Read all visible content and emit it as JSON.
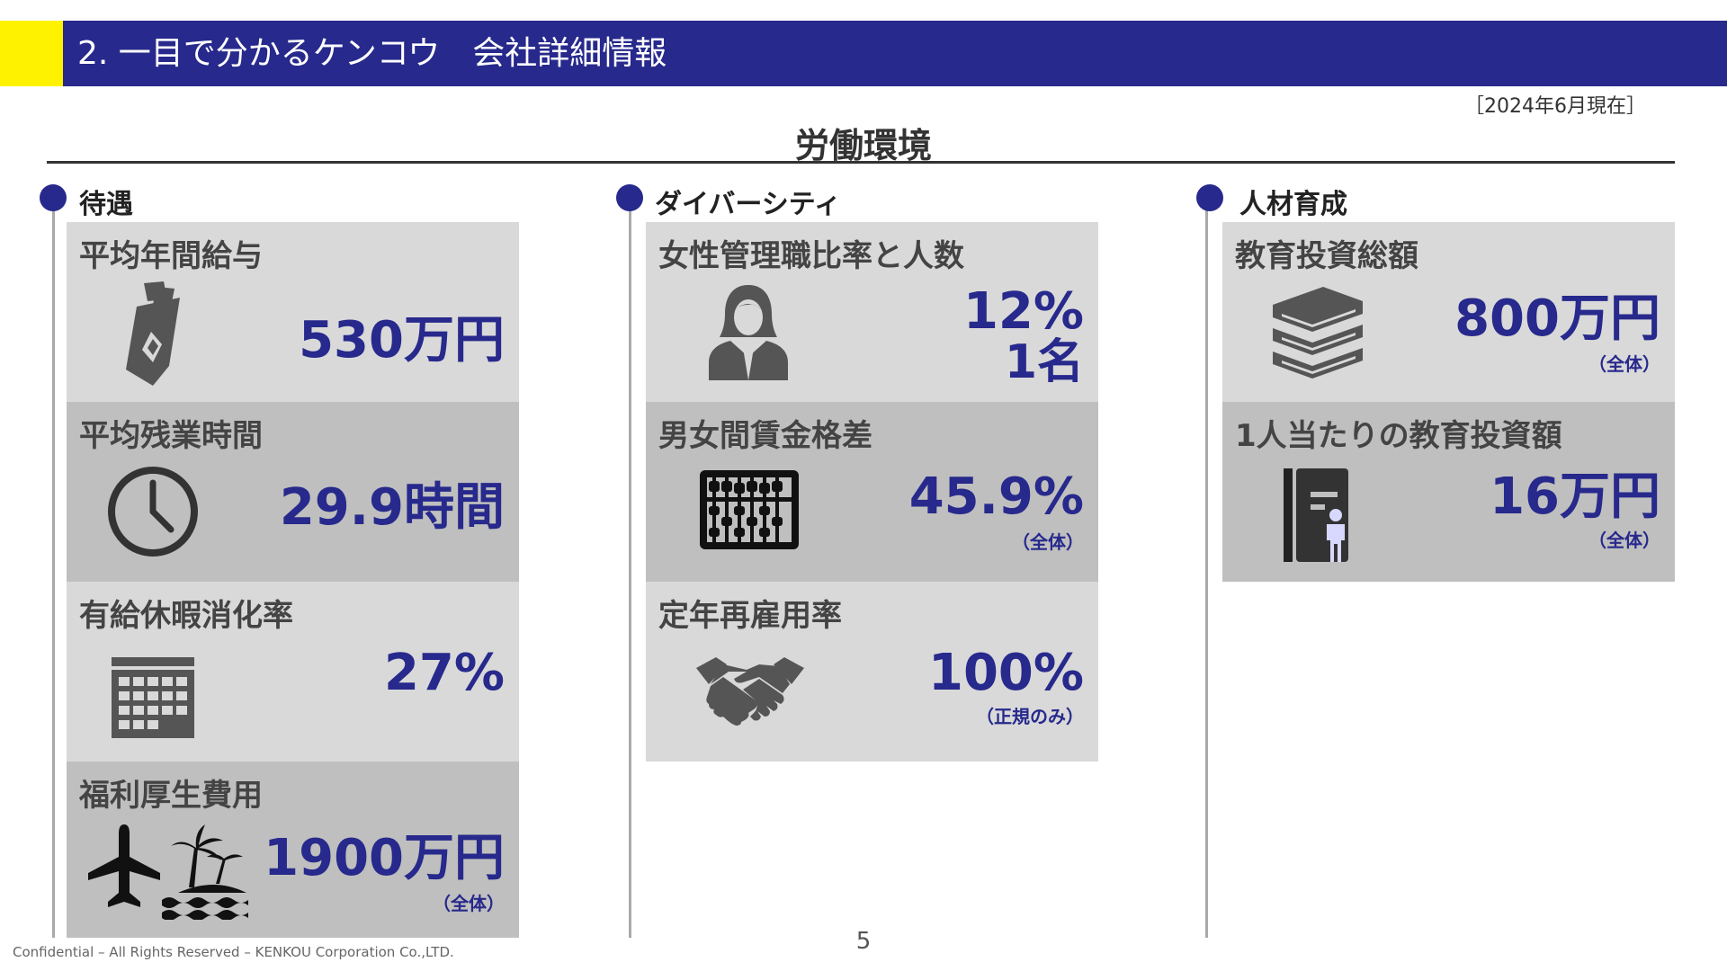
{
  "header": {
    "title": "2. 一目で分かるケンコウ　会社詳細情報",
    "accent_color": "#fff200",
    "band_color": "#27298c"
  },
  "as_of": "［2024年6月現在］",
  "section_title": "労働環境",
  "columns": [
    {
      "heading": "待遇",
      "cards": [
        {
          "label": "平均年間給与",
          "value": "530万円",
          "icon": "salary-envelope-icon"
        },
        {
          "label": "平均残業時間",
          "value": "29.9時間",
          "icon": "clock-icon"
        },
        {
          "label": "有給休暇消化率",
          "value": "27%",
          "icon": "calendar-icon"
        },
        {
          "label": "福利厚生費用",
          "value": "1900万円",
          "note": "（全体）",
          "icon": "airplane-island-icon"
        }
      ]
    },
    {
      "heading": "ダイバーシティ",
      "cards": [
        {
          "label": "女性管理職比率と人数",
          "value": "12%",
          "value2": "1名",
          "icon": "woman-icon"
        },
        {
          "label": "男女間賃金格差",
          "value": "45.9%",
          "note": "（全体）",
          "icon": "abacus-icon"
        },
        {
          "label": "定年再雇用率",
          "value": "100%",
          "note": "（正規のみ）",
          "icon": "handshake-icon"
        }
      ]
    },
    {
      "heading": "人材育成",
      "cards": [
        {
          "label": "教育投資総額",
          "value": "800万円",
          "note": "（全体）",
          "icon": "books-icon"
        },
        {
          "label": "1人当たりの教育投資額",
          "value": "16万円",
          "note": "（全体）",
          "icon": "person-book-icon"
        }
      ]
    }
  ],
  "footer": {
    "confidential": "Confidential – All Rights Reserved – KENKOU Corporation Co.,LTD.",
    "page_number": "5"
  },
  "colors": {
    "accent_blue": "#27298c",
    "card_light": "#d9d9d9",
    "card_dark": "#bfbfbf",
    "icon_gray": "#555555"
  }
}
